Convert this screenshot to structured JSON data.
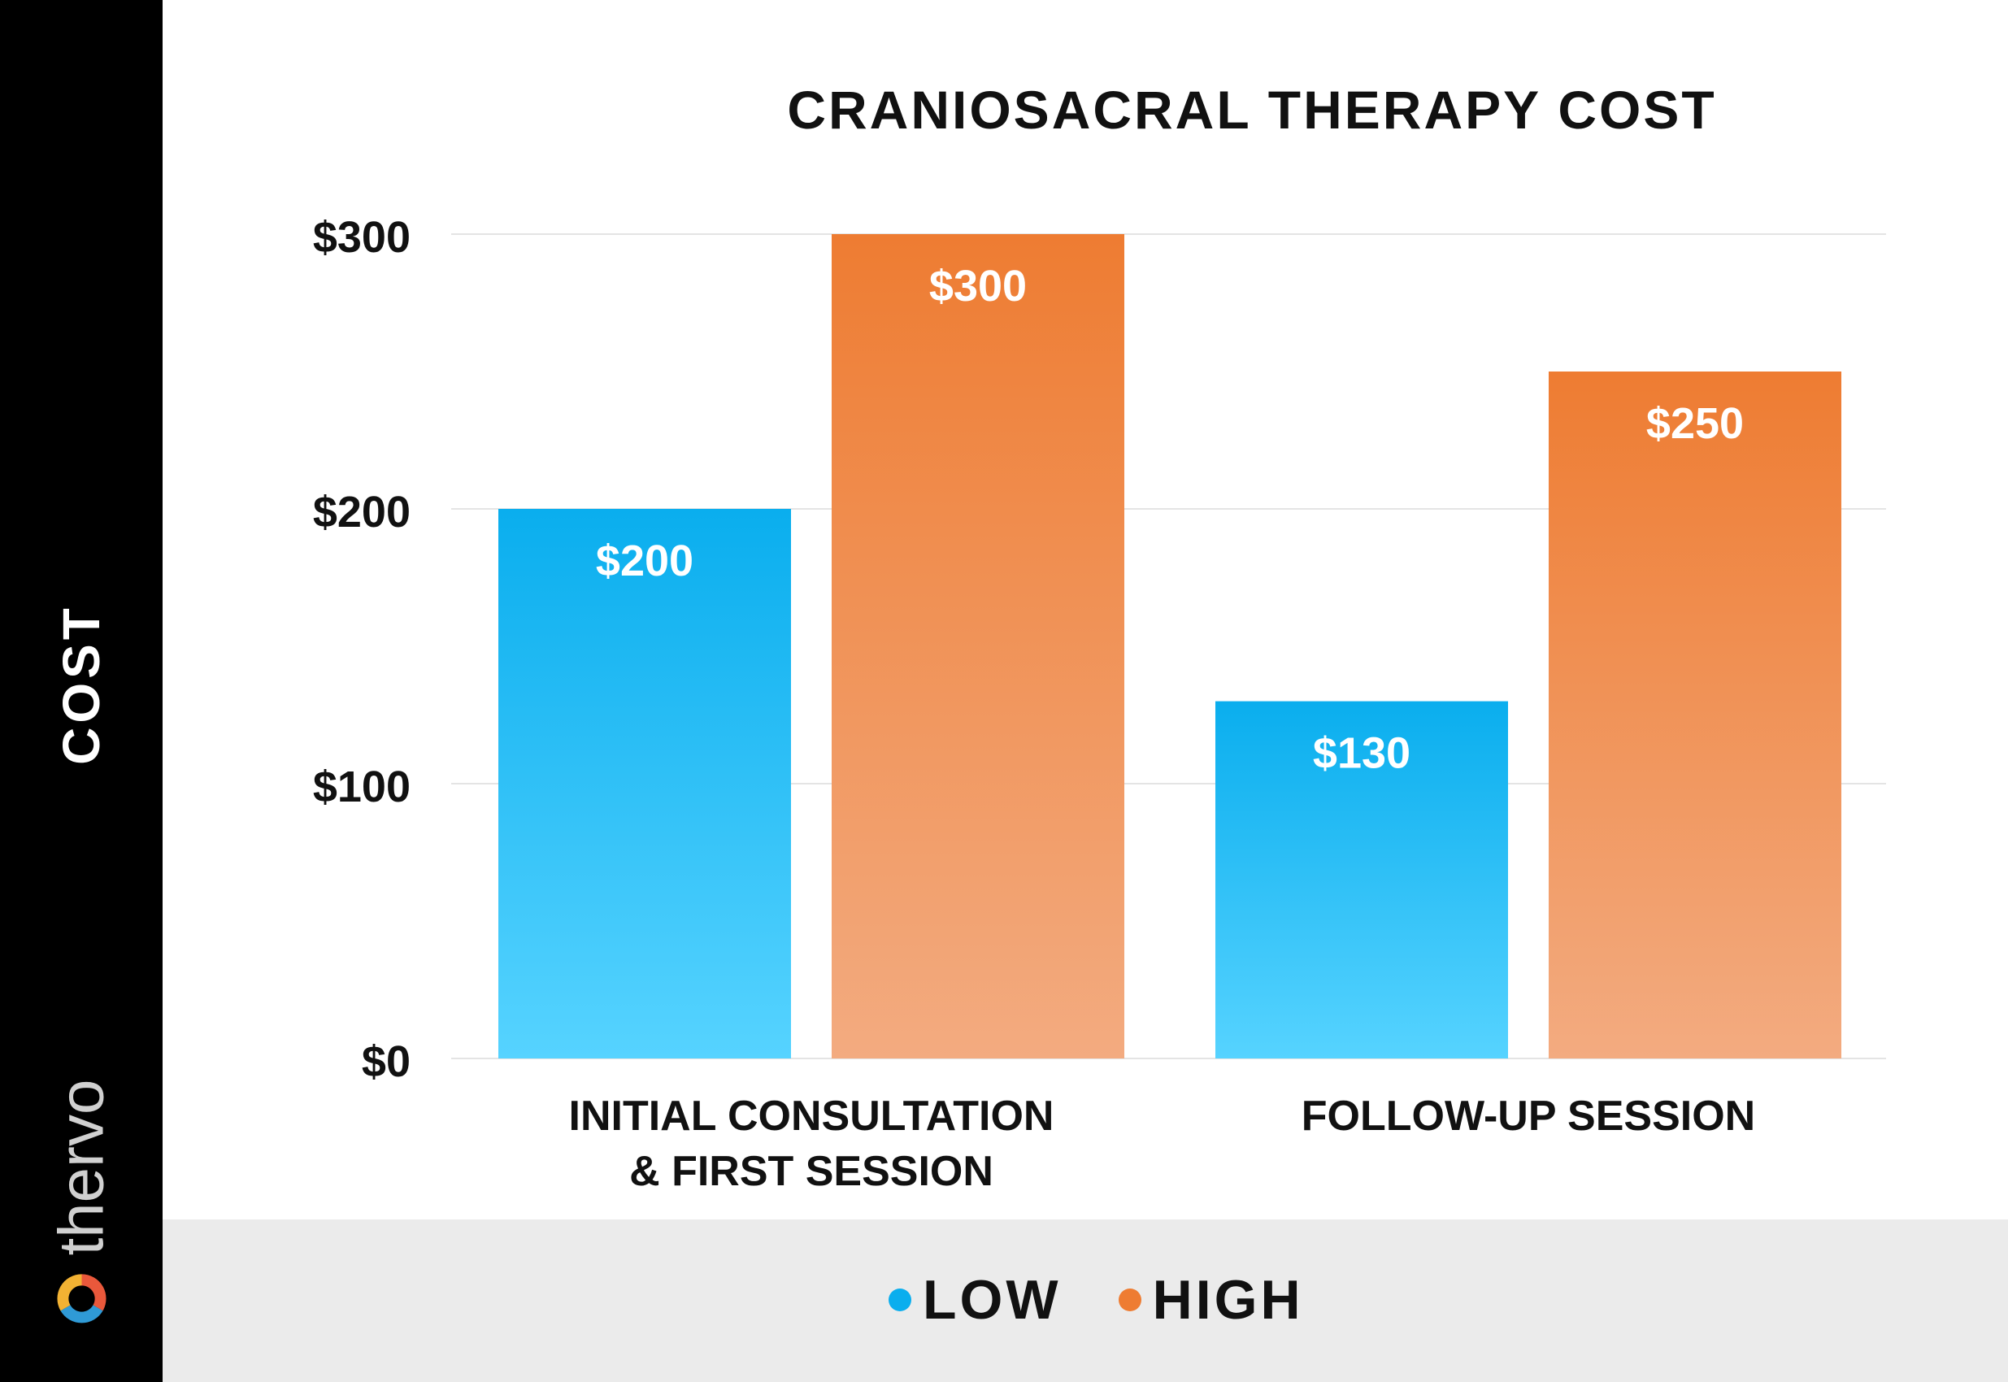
{
  "chart_data": {
    "type": "bar",
    "title": "CRANIOSACRAL THERAPY COST",
    "ylabel": "COST",
    "xlabel": "",
    "ylim": [
      0,
      300
    ],
    "yticks": [
      {
        "value": 0,
        "label": "$0"
      },
      {
        "value": 100,
        "label": "$100"
      },
      {
        "value": 200,
        "label": "$200"
      },
      {
        "value": 300,
        "label": "$300"
      }
    ],
    "categories": [
      [
        "INITIAL CONSULTATION",
        "& FIRST SESSION"
      ],
      [
        "FOLLOW-UP SESSION"
      ]
    ],
    "series": [
      {
        "name": "LOW",
        "values": [
          200,
          130
        ],
        "labels": [
          "$200",
          "$130"
        ],
        "color": "#0aaeee",
        "color_light": "#56d3ff"
      },
      {
        "name": "HIGH",
        "values": [
          300,
          250
        ],
        "labels": [
          "$300",
          "$250"
        ],
        "color": "#ee7c32",
        "color_light": "#f3ab80"
      }
    ],
    "grid": true,
    "legend_position": "bottom-center"
  },
  "brand": {
    "text": "thervo",
    "icon": "aperture-logo-icon"
  }
}
